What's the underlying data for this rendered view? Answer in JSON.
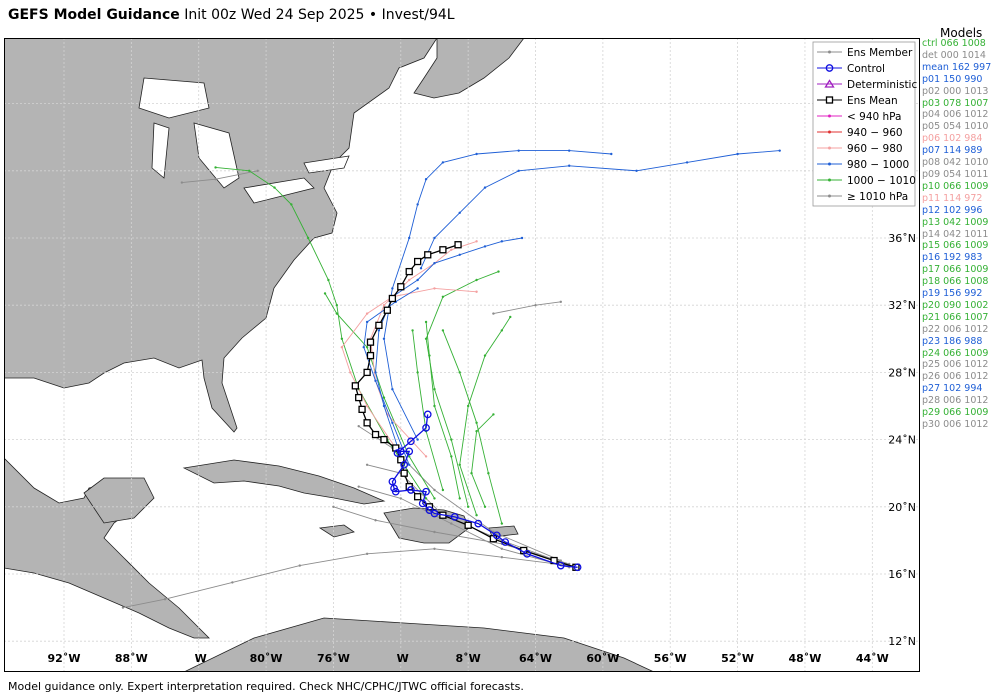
{
  "title": {
    "bold": "GEFS Model Guidance",
    "rest": "Init 00z Wed 24 Sep 2025 • Invest/94L"
  },
  "models_heading": "Models",
  "models": [
    {
      "label": "ctrl 066 1008",
      "color": "#35b135"
    },
    {
      "label": "det 000 1014",
      "color": "#8c8c8c"
    },
    {
      "label": "mean 162 997",
      "color": "#1f5fd6"
    },
    {
      "label": "p01 150 990",
      "color": "#1f5fd6"
    },
    {
      "label": "p02 000 1013",
      "color": "#8c8c8c"
    },
    {
      "label": "p03 078 1007",
      "color": "#35b135"
    },
    {
      "label": "p04 006 1012",
      "color": "#8c8c8c"
    },
    {
      "label": "p05 054 1010",
      "color": "#8c8c8c"
    },
    {
      "label": "p06 102 984",
      "color": "#f4a0a0"
    },
    {
      "label": "p07 114 989",
      "color": "#1f5fd6"
    },
    {
      "label": "p08 042 1010",
      "color": "#8c8c8c"
    },
    {
      "label": "p09 054 1011",
      "color": "#8c8c8c"
    },
    {
      "label": "p10 066 1009",
      "color": "#35b135"
    },
    {
      "label": "p11 114 972",
      "color": "#f4a0a0"
    },
    {
      "label": "p12 102 996",
      "color": "#1f5fd6"
    },
    {
      "label": "p13 042 1009",
      "color": "#35b135"
    },
    {
      "label": "p14 042 1011",
      "color": "#8c8c8c"
    },
    {
      "label": "p15 066 1009",
      "color": "#35b135"
    },
    {
      "label": "p16 192 983",
      "color": "#1f5fd6"
    },
    {
      "label": "p17 066 1009",
      "color": "#35b135"
    },
    {
      "label": "p18 066 1008",
      "color": "#35b135"
    },
    {
      "label": "p19 156 992",
      "color": "#1f5fd6"
    },
    {
      "label": "p20 090 1002",
      "color": "#35b135"
    },
    {
      "label": "p21 066 1007",
      "color": "#35b135"
    },
    {
      "label": "p22 006 1012",
      "color": "#8c8c8c"
    },
    {
      "label": "p23 186 988",
      "color": "#1f5fd6"
    },
    {
      "label": "p24 066 1009",
      "color": "#35b135"
    },
    {
      "label": "p25 006 1012",
      "color": "#8c8c8c"
    },
    {
      "label": "p26 006 1012",
      "color": "#8c8c8c"
    },
    {
      "label": "p27 102 994",
      "color": "#1f5fd6"
    },
    {
      "label": "p28 006 1012",
      "color": "#8c8c8c"
    },
    {
      "label": "p29 066 1009",
      "color": "#35b135"
    },
    {
      "label": "p30 006 1012",
      "color": "#8c8c8c"
    }
  ],
  "legend": [
    {
      "label": "Ens Member",
      "color": "#8c8c8c",
      "marker": "dot"
    },
    {
      "label": "Control",
      "color": "#1010e0",
      "marker": "circle"
    },
    {
      "label": "Deterministic",
      "color": "#a020c0",
      "marker": "triangle"
    },
    {
      "label": "Ens Mean",
      "color": "#000000",
      "marker": "square"
    },
    {
      "label": "< 940 hPa",
      "color": "#e020c0",
      "marker": "dot"
    },
    {
      "label": "940 − 960",
      "color": "#e03030",
      "marker": "dot"
    },
    {
      "label": "960 − 980",
      "color": "#f4a0a0",
      "marker": "dot"
    },
    {
      "label": "980 − 1000",
      "color": "#1f5fd6",
      "marker": "dot"
    },
    {
      "label": "1000 − 1010",
      "color": "#35b135",
      "marker": "dot"
    },
    {
      "label": "≥ 1010 hPa",
      "color": "#8c8c8c",
      "marker": "dot"
    }
  ],
  "lat_labels": [
    "36˚N",
    "32˚N",
    "28˚N",
    "24˚N",
    "20˚N",
    "16˚N",
    "12˚N"
  ],
  "lon_labels": [
    "92˚W",
    "88˚W",
    "W",
    "80˚W",
    "76˚W",
    "W",
    "8˚W",
    "64˚W",
    "60˚W",
    "56˚W",
    "52˚W",
    "48˚W",
    "44˚W"
  ],
  "footer": "Model guidance only. Expert interpretation required. Check NHC/CPHC/JTWC official forecasts.",
  "tracks": {
    "control": [
      [
        -61.5,
        16.4
      ],
      [
        -62.5,
        16.5
      ],
      [
        -64.5,
        17.2
      ],
      [
        -65.8,
        17.9
      ],
      [
        -66.3,
        18.3
      ],
      [
        -67.4,
        19.0
      ],
      [
        -68.8,
        19.4
      ],
      [
        -70.0,
        19.6
      ],
      [
        -70.3,
        19.8
      ],
      [
        -70.7,
        20.2
      ],
      [
        -70.5,
        20.9
      ],
      [
        -71.4,
        21.0
      ],
      [
        -72.3,
        20.9
      ],
      [
        -72.4,
        21.1
      ],
      [
        -72.5,
        21.5
      ],
      [
        -71.8,
        22.5
      ],
      [
        -71.5,
        23.3
      ],
      [
        -72.0,
        23.3
      ],
      [
        -72.2,
        23.2
      ],
      [
        -71.4,
        23.9
      ],
      [
        -70.5,
        24.7
      ],
      [
        -70.4,
        25.5
      ]
    ],
    "mean": [
      [
        -61.6,
        16.4
      ],
      [
        -62.9,
        16.8
      ],
      [
        -64.7,
        17.4
      ],
      [
        -66.5,
        18.1
      ],
      [
        -68.0,
        18.9
      ],
      [
        -69.5,
        19.5
      ],
      [
        -70.3,
        20.0
      ],
      [
        -71.0,
        20.6
      ],
      [
        -71.5,
        21.2
      ],
      [
        -71.8,
        22.0
      ],
      [
        -72.0,
        22.8
      ],
      [
        -72.3,
        23.5
      ],
      [
        -73.0,
        24.0
      ],
      [
        -73.5,
        24.3
      ],
      [
        -74.0,
        25.0
      ],
      [
        -74.3,
        25.8
      ],
      [
        -74.5,
        26.5
      ],
      [
        -74.7,
        27.2
      ],
      [
        -74.0,
        28.0
      ],
      [
        -73.8,
        29.0
      ],
      [
        -73.8,
        29.8
      ],
      [
        -73.3,
        30.8
      ],
      [
        -72.8,
        31.7
      ],
      [
        -72.5,
        32.4
      ],
      [
        -72.0,
        33.1
      ],
      [
        -71.5,
        34.0
      ],
      [
        -71.0,
        34.6
      ],
      [
        -70.4,
        35.0
      ],
      [
        -69.5,
        35.3
      ],
      [
        -68.6,
        35.6
      ]
    ],
    "blue": [
      [
        [
          -70.8,
          34.2
        ],
        [
          -70.0,
          36.0
        ],
        [
          -68.5,
          37.5
        ],
        [
          -67.0,
          39.0
        ],
        [
          -65.0,
          40.0
        ],
        [
          -62.0,
          40.3
        ],
        [
          -58.0,
          40.0
        ],
        [
          -55.0,
          40.5
        ],
        [
          -52.0,
          41.0
        ],
        [
          -49.5,
          41.2
        ]
      ],
      [
        [
          -71.0,
          24.0
        ],
        [
          -72.5,
          27.0
        ],
        [
          -73.0,
          30.0
        ],
        [
          -72.5,
          33.0
        ],
        [
          -71.5,
          36.0
        ],
        [
          -71.0,
          38.0
        ],
        [
          -70.5,
          39.5
        ],
        [
          -69.5,
          40.5
        ],
        [
          -67.5,
          41.0
        ],
        [
          -65.0,
          41.2
        ],
        [
          -62.0,
          41.2
        ],
        [
          -59.5,
          41.0
        ]
      ],
      [
        [
          -72.0,
          23.0
        ],
        [
          -73.0,
          26.0
        ],
        [
          -73.5,
          28.0
        ],
        [
          -73.3,
          30.5
        ],
        [
          -72.5,
          32.5
        ],
        [
          -71.0,
          33.5
        ],
        [
          -70.0,
          34.5
        ],
        [
          -68.5,
          35.0
        ],
        [
          -67.0,
          35.5
        ],
        [
          -66.0,
          35.8
        ],
        [
          -64.8,
          36.0
        ]
      ],
      [
        [
          -71.5,
          22.5
        ],
        [
          -72.5,
          25.0
        ],
        [
          -73.5,
          27.5
        ],
        [
          -74.2,
          29.5
        ],
        [
          -74.0,
          31.0
        ],
        [
          -72.3,
          32.2
        ],
        [
          -71.0,
          33.0
        ]
      ]
    ],
    "pink": [
      [
        [
          -70.5,
          23.0
        ],
        [
          -72.8,
          25.5
        ],
        [
          -73.5,
          27.5
        ],
        [
          -73.8,
          30.0
        ],
        [
          -73.0,
          32.0
        ],
        [
          -71.5,
          33.5
        ],
        [
          -70.0,
          34.5
        ],
        [
          -69.0,
          35.3
        ],
        [
          -67.5,
          35.8
        ]
      ],
      [
        [
          -72.3,
          23.5
        ],
        [
          -74.0,
          26.0
        ],
        [
          -75.0,
          28.0
        ],
        [
          -75.5,
          29.5
        ],
        [
          -74.0,
          31.5
        ],
        [
          -72.5,
          32.5
        ],
        [
          -70.0,
          33.0
        ],
        [
          -67.5,
          32.8
        ]
      ]
    ],
    "green": [
      [
        [
          -70.5,
          20.5
        ],
        [
          -72.8,
          24.0
        ],
        [
          -74.5,
          27.0
        ],
        [
          -75.5,
          30.0
        ],
        [
          -75.8,
          32.0
        ],
        [
          -76.3,
          33.5
        ],
        [
          -77.5,
          36.0
        ],
        [
          -78.5,
          38.0
        ],
        [
          -79.5,
          39.0
        ],
        [
          -81.0,
          40.0
        ],
        [
          -83.0,
          40.2
        ]
      ],
      [
        [
          -68.0,
          20.0
        ],
        [
          -69.0,
          24.0
        ],
        [
          -70.0,
          27.0
        ],
        [
          -70.5,
          30.0
        ],
        [
          -69.5,
          32.5
        ],
        [
          -67.5,
          33.5
        ],
        [
          -66.2,
          34.0
        ]
      ],
      [
        [
          -67.5,
          19.5
        ],
        [
          -68.5,
          22.5
        ],
        [
          -68.0,
          26.0
        ],
        [
          -67.0,
          29.0
        ],
        [
          -66.0,
          30.5
        ],
        [
          -65.5,
          31.3
        ]
      ],
      [
        [
          -70.0,
          20.5
        ],
        [
          -71.5,
          23.0
        ],
        [
          -73.0,
          26.5
        ],
        [
          -74.0,
          29.5
        ],
        [
          -75.8,
          31.5
        ],
        [
          -76.5,
          32.7
        ]
      ],
      [
        [
          -69.5,
          21.0
        ],
        [
          -70.5,
          24.5
        ],
        [
          -71.0,
          28.0
        ],
        [
          -71.3,
          30.5
        ]
      ],
      [
        [
          -68.5,
          20.5
        ],
        [
          -69.0,
          23.0
        ],
        [
          -70.0,
          26.0
        ],
        [
          -70.3,
          29.0
        ],
        [
          -70.5,
          31.0
        ]
      ],
      [
        [
          -67.0,
          20.0
        ],
        [
          -67.8,
          22.0
        ],
        [
          -67.5,
          24.5
        ],
        [
          -66.5,
          25.5
        ]
      ],
      [
        [
          -66.0,
          19.0
        ],
        [
          -66.8,
          22.0
        ],
        [
          -67.5,
          25.0
        ],
        [
          -68.5,
          28.0
        ],
        [
          -69.5,
          30.5
        ]
      ]
    ],
    "gray": [
      [
        [
          -62.0,
          16.5
        ],
        [
          -66.0,
          17.0
        ],
        [
          -70.0,
          17.5
        ],
        [
          -74.0,
          17.2
        ],
        [
          -78.0,
          16.5
        ],
        [
          -82.0,
          15.5
        ],
        [
          -86.0,
          14.5
        ],
        [
          -88.5,
          14.0
        ]
      ],
      [
        [
          -62.0,
          16.6
        ],
        [
          -66.0,
          17.8
        ],
        [
          -70.0,
          18.5
        ],
        [
          -73.5,
          19.2
        ],
        [
          -76.0,
          20.0
        ]
      ],
      [
        [
          -62.0,
          16.4
        ],
        [
          -66.0,
          17.5
        ],
        [
          -69.0,
          19.0
        ],
        [
          -72.0,
          20.5
        ],
        [
          -74.5,
          21.2
        ]
      ],
      [
        [
          -62.5,
          16.8
        ],
        [
          -66.5,
          18.5
        ],
        [
          -70.0,
          21.0
        ],
        [
          -72.5,
          23.5
        ],
        [
          -74.5,
          24.8
        ]
      ],
      [
        [
          -62.2,
          16.6
        ],
        [
          -66.0,
          18.0
        ],
        [
          -69.5,
          19.5
        ],
        [
          -72.0,
          22.0
        ],
        [
          -74.0,
          22.5
        ]
      ],
      [
        [
          -66.5,
          31.5
        ],
        [
          -64.0,
          32.0
        ],
        [
          -62.5,
          32.2
        ]
      ],
      [
        [
          -80.5,
          40.0
        ],
        [
          -83.0,
          39.5
        ],
        [
          -85.0,
          39.3
        ]
      ]
    ]
  }
}
